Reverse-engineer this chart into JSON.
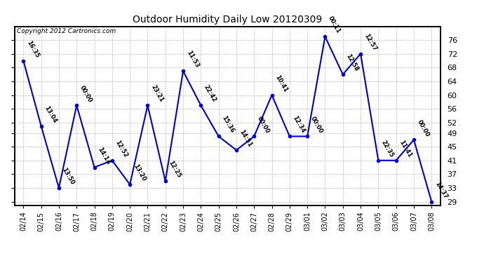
{
  "title": "Outdoor Humidity Daily Low 20120309",
  "copyright": "Copyright 2012 Cartronics.com",
  "ylim": [
    28,
    80
  ],
  "yticks": [
    29,
    33,
    37,
    41,
    45,
    49,
    52,
    56,
    60,
    64,
    68,
    72,
    76
  ],
  "background_color": "#ffffff",
  "line_color": "#0000cc",
  "grid_color": "#bbbbbb",
  "points": [
    {
      "date": "02/14",
      "value": 70,
      "label": "16:35"
    },
    {
      "date": "02/15",
      "value": 51,
      "label": "13:04"
    },
    {
      "date": "02/16",
      "value": 33,
      "label": "13:50"
    },
    {
      "date": "02/17",
      "value": 57,
      "label": "00:00"
    },
    {
      "date": "02/18",
      "value": 39,
      "label": "14:14"
    },
    {
      "date": "02/19",
      "value": 41,
      "label": "12:52"
    },
    {
      "date": "02/20",
      "value": 34,
      "label": "13:20"
    },
    {
      "date": "02/21",
      "value": 57,
      "label": "23:21"
    },
    {
      "date": "02/22",
      "value": 35,
      "label": "12:25"
    },
    {
      "date": "02/23",
      "value": 67,
      "label": "11:53"
    },
    {
      "date": "02/24",
      "value": 57,
      "label": "22:42"
    },
    {
      "date": "02/25",
      "value": 48,
      "label": "15:36"
    },
    {
      "date": "02/26",
      "value": 44,
      "label": "14:51"
    },
    {
      "date": "02/27",
      "value": 48,
      "label": "00:00"
    },
    {
      "date": "02/28",
      "value": 60,
      "label": "10:41"
    },
    {
      "date": "02/29",
      "value": 48,
      "label": "12:34"
    },
    {
      "date": "03/01",
      "value": 48,
      "label": "00:00"
    },
    {
      "date": "03/02",
      "value": 77,
      "label": "00:11"
    },
    {
      "date": "03/03",
      "value": 66,
      "label": "12:58"
    },
    {
      "date": "03/04",
      "value": 72,
      "label": "12:57"
    },
    {
      "date": "03/05",
      "value": 41,
      "label": "22:35"
    },
    {
      "date": "03/06",
      "value": 41,
      "label": "11:41"
    },
    {
      "date": "03/07",
      "value": 47,
      "label": "00:00"
    },
    {
      "date": "03/08",
      "value": 29,
      "label": "14:37"
    }
  ]
}
